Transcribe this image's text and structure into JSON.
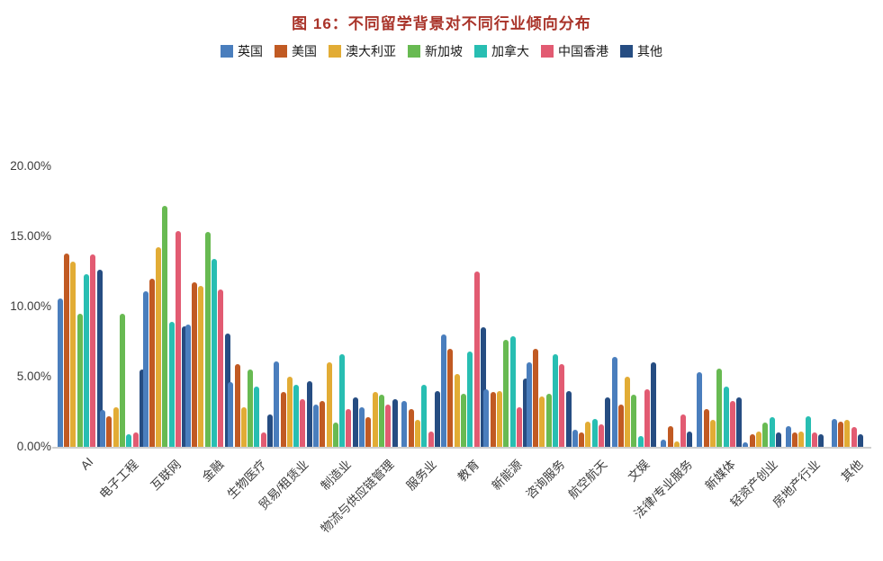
{
  "title": "图 16：不同留学背景对不同行业倾向分布",
  "title_color": "#a93329",
  "axis": {
    "y_ticks": [
      {
        "label": "0.00%",
        "value": 0
      },
      {
        "label": "5.00%",
        "value": 5
      },
      {
        "label": "10.00%",
        "value": 10
      },
      {
        "label": "15.00%",
        "value": 15
      },
      {
        "label": "20.00%",
        "value": 20
      }
    ]
  },
  "chart_data": {
    "type": "bar",
    "title": "图 16：不同留学背景对不同行业倾向分布",
    "xlabel": "",
    "ylabel": "",
    "ylim": [
      0,
      20
    ],
    "grid": false,
    "legend_position": "top",
    "categories": [
      "AI",
      "电子工程",
      "互联网",
      "金融",
      "生物医疗",
      "贸易/租赁业",
      "制造业",
      "物流与供应链管理",
      "服务业",
      "教育",
      "新能源",
      "咨询服务",
      "航空航天",
      "文娱",
      "法律/专业服务",
      "新媒体",
      "轻资产创业",
      "房地产行业",
      "其他"
    ],
    "series": [
      {
        "id": "uk",
        "name": "英国",
        "color": "#4a7ebd",
        "values": [
          10.6,
          2.6,
          11.1,
          8.7,
          4.6,
          6.1,
          3.0,
          2.8,
          3.3,
          8.0,
          4.1,
          6.0,
          1.2,
          6.4,
          0.5,
          5.3,
          0.3,
          1.5,
          2.0
        ]
      },
      {
        "id": "us",
        "name": "美国",
        "color": "#c15a23",
        "values": [
          13.8,
          2.2,
          12.0,
          11.7,
          5.9,
          3.9,
          3.3,
          2.1,
          2.7,
          7.0,
          3.9,
          7.0,
          1.0,
          3.0,
          1.5,
          2.7,
          0.9,
          1.0,
          1.8
        ]
      },
      {
        "id": "australia",
        "name": "澳大利亚",
        "color": "#e2ac35",
        "values": [
          13.2,
          2.8,
          14.2,
          11.5,
          2.8,
          5.0,
          6.0,
          3.9,
          1.9,
          5.2,
          4.0,
          3.6,
          1.8,
          5.0,
          0.4,
          1.9,
          1.1,
          1.1,
          1.9
        ]
      },
      {
        "id": "singapore",
        "name": "新加坡",
        "color": "#68ba52",
        "values": [
          9.5,
          9.5,
          17.2,
          15.3,
          5.5,
          0,
          1.7,
          3.7,
          0,
          3.8,
          7.6,
          3.8,
          0,
          3.7,
          0,
          5.6,
          1.7,
          0,
          0
        ]
      },
      {
        "id": "canada",
        "name": "加拿大",
        "color": "#28beb2",
        "values": [
          12.3,
          0.9,
          8.9,
          13.4,
          4.3,
          4.4,
          6.6,
          0,
          4.4,
          6.8,
          7.9,
          6.6,
          2.0,
          0.8,
          0,
          4.3,
          2.1,
          2.2,
          0
        ]
      },
      {
        "id": "hongkong",
        "name": "中国香港",
        "color": "#e25b72",
        "values": [
          13.7,
          1.0,
          15.4,
          11.2,
          1.0,
          3.4,
          2.7,
          3.0,
          1.1,
          12.5,
          2.8,
          5.9,
          1.6,
          4.1,
          2.3,
          3.3,
          0,
          1.0,
          1.4
        ]
      },
      {
        "id": "other",
        "name": "其他",
        "color": "#264d82",
        "values": [
          12.6,
          5.5,
          8.6,
          8.1,
          2.3,
          4.7,
          3.5,
          3.4,
          4.0,
          8.5,
          4.9,
          4.0,
          3.5,
          6.0,
          1.1,
          3.5,
          1.0,
          0.9,
          0.9
        ]
      }
    ]
  }
}
